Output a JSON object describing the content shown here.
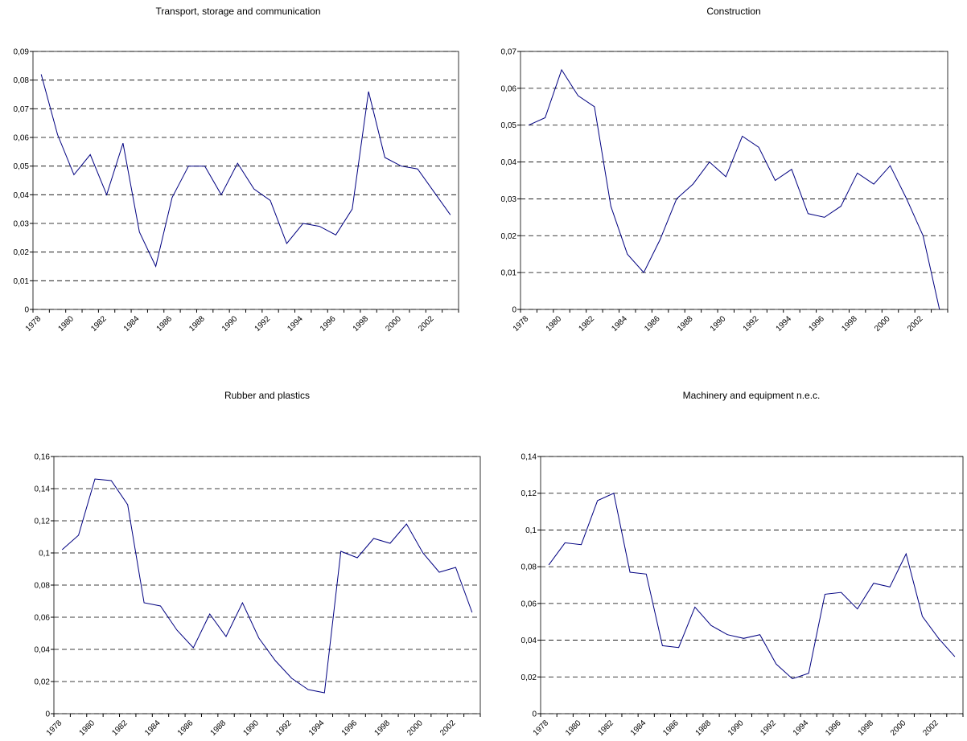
{
  "chart_data": [
    {
      "type": "line",
      "title": "Transport, storage and communication",
      "categories": [
        "1978",
        null,
        "1980",
        null,
        "1982",
        null,
        "1984",
        null,
        "1986",
        null,
        "1988",
        null,
        "1990",
        null,
        "1992",
        null,
        "1994",
        null,
        "1996",
        null,
        "1998",
        null,
        "2000",
        null,
        "2002",
        null
      ],
      "values": [
        0.082,
        0.061,
        0.047,
        0.054,
        0.04,
        0.058,
        0.027,
        0.015,
        0.039,
        0.05,
        0.05,
        0.04,
        0.051,
        0.042,
        0.038,
        0.023,
        0.03,
        0.029,
        0.026,
        0.035,
        0.076,
        0.053,
        0.05,
        0.049,
        0.041,
        0.033
      ],
      "color": "#000080",
      "ylim": [
        0,
        0.09
      ],
      "yticks": [
        0,
        {
          "value": 0.01,
          "label": "0,01"
        },
        {
          "value": 0.02,
          "label": "0,02"
        },
        {
          "value": 0.03,
          "label": "0,03"
        },
        {
          "value": 0.04,
          "label": "0,04"
        },
        {
          "value": 0.05,
          "label": "0,05"
        },
        {
          "value": 0.06,
          "label": "0,06"
        },
        {
          "value": 0.07,
          "label": "0,07"
        },
        {
          "value": 0.08,
          "label": "0,08"
        },
        {
          "value": 0.09,
          "label": "0,09"
        }
      ],
      "grid": true
    },
    {
      "type": "line",
      "title": "Construction",
      "categories": [
        "1978",
        null,
        "1980",
        null,
        "1982",
        null,
        "1984",
        null,
        "1986",
        null,
        "1988",
        null,
        "1990",
        null,
        "1992",
        null,
        "1994",
        null,
        "1996",
        null,
        "1998",
        null,
        "2000",
        null,
        "2002",
        null
      ],
      "values": [
        0.05,
        0.052,
        0.065,
        0.058,
        0.055,
        0.028,
        0.015,
        0.01,
        0.019,
        0.03,
        0.034,
        0.04,
        0.036,
        0.047,
        0.044,
        0.035,
        0.038,
        0.026,
        0.025,
        0.028,
        0.037,
        0.034,
        0.039,
        0.03,
        0.02,
        0
      ],
      "color": "#000080",
      "ylim": [
        0,
        0.07
      ],
      "yticks": [
        0,
        {
          "value": 0.01,
          "label": "0,01"
        },
        {
          "value": 0.02,
          "label": "0,02"
        },
        {
          "value": 0.03,
          "label": "0,03"
        },
        {
          "value": 0.04,
          "label": "0,04"
        },
        {
          "value": 0.05,
          "label": "0,05"
        },
        {
          "value": 0.06,
          "label": "0,06"
        },
        {
          "value": 0.07,
          "label": "0,07"
        }
      ],
      "grid": true
    },
    {
      "type": "line",
      "title": "Rubber and plastics",
      "categories": [
        "1978",
        null,
        "1980",
        null,
        "1982",
        null,
        "1984",
        null,
        "1986",
        null,
        "1988",
        null,
        "1990",
        null,
        "1992",
        null,
        "1994",
        null,
        "1996",
        null,
        "1998",
        null,
        "2000",
        null,
        "2002",
        null
      ],
      "values": [
        0.102,
        0.111,
        0.146,
        0.145,
        0.13,
        0.069,
        0.067,
        0.052,
        0.041,
        0.062,
        0.048,
        0.069,
        0.047,
        0.033,
        0.022,
        0.015,
        0.013,
        0.101,
        0.097,
        0.109,
        0.106,
        0.118,
        0.1,
        0.088,
        0.091,
        0.063
      ],
      "color": "#000080",
      "ylim": [
        0,
        0.16
      ],
      "yticks": [
        0,
        {
          "value": 0.02,
          "label": "0,02"
        },
        {
          "value": 0.04,
          "label": "0,04"
        },
        {
          "value": 0.06,
          "label": "0,06"
        },
        {
          "value": 0.08,
          "label": "0,08"
        },
        {
          "value": 0.1,
          "label": "0,1"
        },
        {
          "value": 0.12,
          "label": "0,12"
        },
        {
          "value": 0.14,
          "label": "0,14"
        },
        {
          "value": 0.16,
          "label": "0,16"
        }
      ],
      "grid": true
    },
    {
      "type": "line",
      "title": "Machinery and equipment n.e.c.",
      "categories": [
        "1978",
        null,
        "1980",
        null,
        "1982",
        null,
        "1984",
        null,
        "1986",
        null,
        "1988",
        null,
        "1990",
        null,
        "1992",
        null,
        "1994",
        null,
        "1996",
        null,
        "1998",
        null,
        "2000",
        null,
        "2002",
        null
      ],
      "values": [
        0.081,
        0.093,
        0.092,
        0.116,
        0.12,
        0.077,
        0.076,
        0.037,
        0.036,
        0.058,
        0.048,
        0.043,
        0.041,
        0.043,
        0.027,
        0.019,
        0.022,
        0.065,
        0.066,
        0.057,
        0.071,
        0.069,
        0.087,
        0.053,
        0.041,
        0.031
      ],
      "color": "#000080",
      "ylim": [
        0,
        0.14
      ],
      "yticks": [
        0,
        {
          "value": 0.02,
          "label": "0,02"
        },
        {
          "value": 0.04,
          "label": "0,04"
        },
        {
          "value": 0.06,
          "label": "0,06"
        },
        {
          "value": 0.08,
          "label": "0,08"
        },
        {
          "value": 0.1,
          "label": "0,1"
        },
        {
          "value": 0.12,
          "label": "0,12"
        },
        {
          "value": 0.14,
          "label": "0,14"
        }
      ],
      "grid": true
    }
  ]
}
